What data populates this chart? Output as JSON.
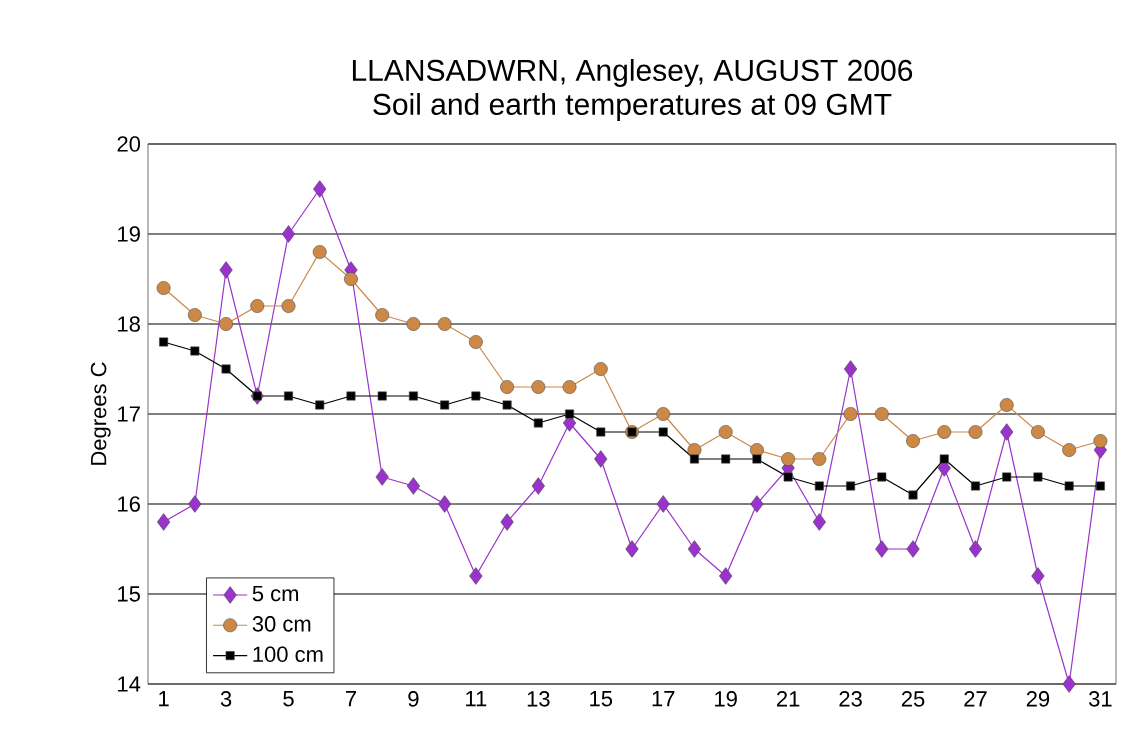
{
  "chart_data": {
    "type": "line",
    "title": "LLANSADWRN, Anglesey, AUGUST 2006",
    "subtitle": "Soil and earth temperatures at 09 GMT",
    "ylabel": "Degrees C",
    "categories": [
      "1",
      null,
      "3",
      null,
      "5",
      null,
      "7",
      null,
      "9",
      null,
      "11",
      null,
      "13",
      null,
      "15",
      null,
      "17",
      null,
      "19",
      null,
      "21",
      null,
      "23",
      null,
      "25",
      null,
      "27",
      null,
      "29",
      null,
      "31"
    ],
    "series": [
      {
        "name": "5 cm",
        "color": "#9933cc",
        "marker": "diamond",
        "values": [
          15.8,
          16.0,
          18.6,
          17.2,
          19.0,
          19.5,
          18.6,
          16.3,
          16.2,
          16.0,
          15.2,
          15.8,
          16.2,
          16.9,
          16.5,
          15.5,
          16.0,
          15.5,
          15.2,
          16.0,
          16.4,
          15.8,
          17.5,
          15.5,
          15.5,
          16.4,
          15.5,
          16.8,
          15.2,
          14.0,
          16.6
        ]
      },
      {
        "name": "30 cm",
        "color": "#cc8844",
        "marker": "circle",
        "values": [
          18.4,
          18.1,
          18.0,
          18.2,
          18.2,
          18.8,
          18.5,
          18.1,
          18.0,
          18.0,
          17.8,
          17.3,
          17.3,
          17.3,
          17.5,
          16.8,
          17.0,
          16.6,
          16.8,
          16.6,
          16.5,
          16.5,
          17.0,
          17.0,
          16.7,
          16.8,
          16.8,
          17.1,
          16.8,
          16.6,
          16.7
        ]
      },
      {
        "name": "100 cm",
        "color": "#000000",
        "marker": "square",
        "values": [
          17.8,
          17.7,
          17.5,
          17.2,
          17.2,
          17.1,
          17.2,
          17.2,
          17.2,
          17.1,
          17.2,
          17.1,
          16.9,
          17.0,
          16.8,
          16.8,
          16.8,
          16.5,
          16.5,
          16.5,
          16.3,
          16.2,
          16.2,
          16.3,
          16.1,
          16.5,
          16.2,
          16.3,
          16.3,
          16.2,
          16.2
        ]
      }
    ],
    "ylim": [
      14,
      20
    ],
    "yticks": [
      14,
      15,
      16,
      17,
      18,
      19,
      20
    ],
    "grid": "y",
    "legend": "bottom left"
  }
}
